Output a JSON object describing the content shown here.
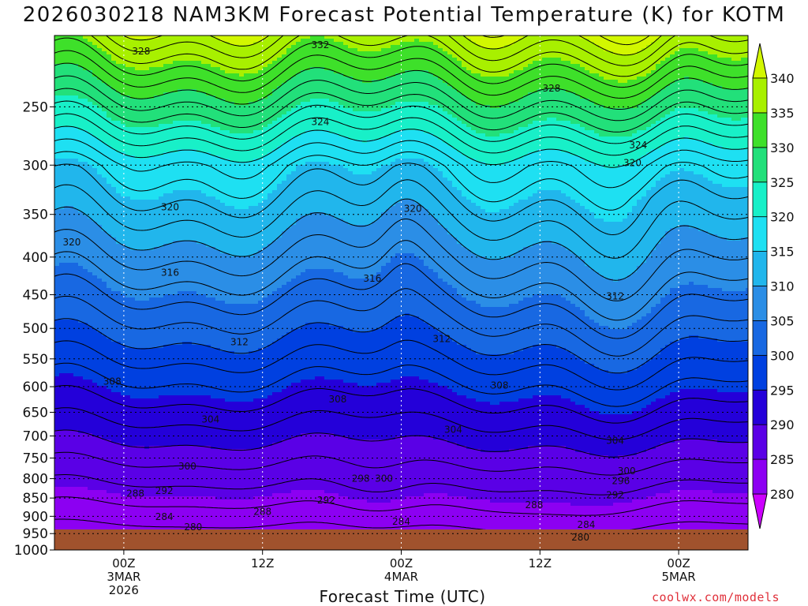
{
  "chart_data": {
    "type": "heatmap",
    "title": "2026030218 NAM3KM Forecast Potential Temperature (K) for KOTM",
    "xlabel": "Forecast Time (UTC)",
    "ylabel": "",
    "credit": "coolwx.com/models",
    "y_axis": {
      "scale": "log-pressure",
      "range_hpa": [
        1000,
        200
      ],
      "ticks": [
        250,
        300,
        350,
        400,
        450,
        500,
        550,
        600,
        650,
        700,
        750,
        800,
        850,
        900,
        950,
        1000
      ]
    },
    "x_axis": {
      "range_hours": [
        -6,
        54
      ],
      "ticks": [
        {
          "hour": 0,
          "lines": [
            "00Z",
            "3MAR",
            "2026"
          ]
        },
        {
          "hour": 12,
          "lines": [
            "12Z"
          ]
        },
        {
          "hour": 24,
          "lines": [
            "00Z",
            "4MAR"
          ]
        },
        {
          "hour": 36,
          "lines": [
            "12Z"
          ]
        },
        {
          "hour": 48,
          "lines": [
            "00Z",
            "5MAR"
          ]
        }
      ]
    },
    "grid": true,
    "colorbar": {
      "placement": "right",
      "levels": [
        280,
        285,
        290,
        295,
        300,
        305,
        310,
        315,
        320,
        325,
        330,
        335,
        340
      ],
      "colors": [
        "#cc00ff",
        "#8c00f2",
        "#5a00e6",
        "#2400d9",
        "#0040e0",
        "#1868e2",
        "#2b8ee6",
        "#21b6ec",
        "#1ee0f2",
        "#18f0c8",
        "#22e07a",
        "#3ee02a",
        "#a8f000",
        "#d2f700"
      ]
    },
    "contour_interval": 2,
    "contour_labels": [
      {
        "value": "328",
        "hour": 1.5,
        "p": 210
      },
      {
        "value": "332",
        "hour": 17,
        "p": 206
      },
      {
        "value": "324",
        "hour": 17,
        "p": 262
      },
      {
        "value": "328",
        "hour": 37,
        "p": 236
      },
      {
        "value": "324",
        "hour": 44.5,
        "p": 282
      },
      {
        "value": "320",
        "hour": 44,
        "p": 298
      },
      {
        "value": "320",
        "hour": 4,
        "p": 342
      },
      {
        "value": "320",
        "hour": 25,
        "p": 344
      },
      {
        "value": "320",
        "hour": -4.5,
        "p": 382
      },
      {
        "value": "316",
        "hour": 4,
        "p": 420
      },
      {
        "value": "316",
        "hour": 21.5,
        "p": 428
      },
      {
        "value": "312",
        "hour": 42.5,
        "p": 452
      },
      {
        "value": "312",
        "hour": 10,
        "p": 522
      },
      {
        "value": "312",
        "hour": 27.5,
        "p": 517
      },
      {
        "value": "308",
        "hour": -1,
        "p": 590
      },
      {
        "value": "308",
        "hour": 18.5,
        "p": 624
      },
      {
        "value": "308",
        "hour": 32.5,
        "p": 598
      },
      {
        "value": "304",
        "hour": 7.5,
        "p": 665
      },
      {
        "value": "304",
        "hour": 28.5,
        "p": 686
      },
      {
        "value": "304",
        "hour": 42.5,
        "p": 710
      },
      {
        "value": "300",
        "hour": 5.5,
        "p": 770
      },
      {
        "value": "298",
        "hour": 20.5,
        "p": 800
      },
      {
        "value": "300",
        "hour": 22.5,
        "p": 800
      },
      {
        "value": "300",
        "hour": 43.5,
        "p": 781
      },
      {
        "value": "296",
        "hour": 43,
        "p": 806
      },
      {
        "value": "292",
        "hour": 3.5,
        "p": 831
      },
      {
        "value": "288",
        "hour": 1,
        "p": 838
      },
      {
        "value": "292",
        "hour": 17.5,
        "p": 856
      },
      {
        "value": "292",
        "hour": 42.5,
        "p": 842
      },
      {
        "value": "288",
        "hour": 35.5,
        "p": 869
      },
      {
        "value": "288",
        "hour": 12,
        "p": 887
      },
      {
        "value": "284",
        "hour": 3.5,
        "p": 901
      },
      {
        "value": "284",
        "hour": 24,
        "p": 915
      },
      {
        "value": "284",
        "hour": 40,
        "p": 924
      },
      {
        "value": "280",
        "hour": 6,
        "p": 931
      },
      {
        "value": "280",
        "hour": 39.5,
        "p": 961
      }
    ]
  }
}
